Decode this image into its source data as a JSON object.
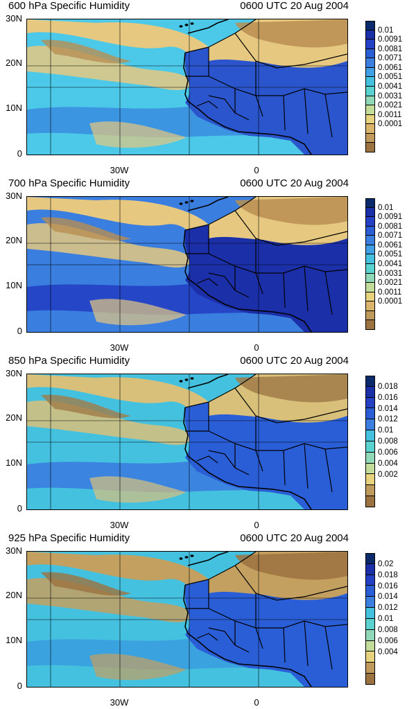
{
  "panels": [
    {
      "title": "600 hPa Specific Humidity",
      "time": "0600 UTC 20 Aug 2004",
      "y_labels": [
        "30N",
        "20N",
        "10N",
        "0"
      ],
      "x_labels": [
        "30W",
        "0"
      ],
      "colorbar_labels": [
        "0.01",
        "0.0091",
        "0.0081",
        "0.0071",
        "0.0061",
        "0.0051",
        "0.0041",
        "0.0031",
        "0.0021",
        "0.0011",
        "0.0001"
      ],
      "colorbar_colors": [
        "#0a2a6b",
        "#1a2fa8",
        "#2440c4",
        "#2a5ed6",
        "#3a7ee0",
        "#3fa0e6",
        "#45c1e0",
        "#5ad3d0",
        "#8fd9b8",
        "#c4dc9a",
        "#e7d27e",
        "#d9b46a",
        "#c09a5c",
        "#9c7240"
      ],
      "palette": {
        "ocean_low": "#4cc9e8",
        "ocean_mid": "#3b8fe0",
        "dry": "#e6c880",
        "very_dry": "#b88e52",
        "land_wet": "#2a55cc"
      }
    },
    {
      "title": "700 hPa Specific Humidity",
      "time": "0600 UTC 20 Aug 2004",
      "y_labels": [
        "30N",
        "20N",
        "10N",
        "0"
      ],
      "x_labels": [
        "30W",
        "0"
      ],
      "colorbar_labels": [
        "0.01",
        "0.0091",
        "0.0081",
        "0.0071",
        "0.0061",
        "0.0051",
        "0.0041",
        "0.0031",
        "0.0021",
        "0.0011",
        "0.0001"
      ],
      "colorbar_colors": [
        "#0a2a6b",
        "#1a2fa8",
        "#2440c4",
        "#2a5ed6",
        "#3a7ee0",
        "#3fa0e6",
        "#45c1e0",
        "#5ad3d0",
        "#8fd9b8",
        "#c4dc9a",
        "#e7d27e",
        "#d9b46a",
        "#c09a5c",
        "#9c7240"
      ],
      "palette": {
        "ocean_low": "#3a7ee0",
        "ocean_mid": "#2440c4",
        "dry": "#e6c880",
        "very_dry": "#b88e52",
        "land_wet": "#1a2fa8"
      }
    },
    {
      "title": "850 hPa Specific Humidity",
      "time": "0600 UTC 20 Aug 2004",
      "y_labels": [
        "30N",
        "20N",
        "10N",
        "0"
      ],
      "x_labels": [
        "30W",
        "0"
      ],
      "colorbar_labels": [
        "0.018",
        "0.016",
        "0.014",
        "0.012",
        "0.01",
        "0.008",
        "0.006",
        "0.004",
        "0.002"
      ],
      "colorbar_colors": [
        "#0a2a6b",
        "#1a2fa8",
        "#2440c4",
        "#2a5ed6",
        "#3a7ee0",
        "#45c1e0",
        "#5ad3d0",
        "#8fd9b8",
        "#c4dc9a",
        "#e7d27e",
        "#c09a5c",
        "#9c7240"
      ],
      "palette": {
        "ocean_low": "#45c1e0",
        "ocean_mid": "#3a7ee0",
        "dry": "#d9c07a",
        "very_dry": "#a07a48",
        "land_wet": "#2a5ed6"
      }
    },
    {
      "title": "925 hPa Specific Humidity",
      "time": "0600 UTC 20 Aug 2004",
      "y_labels": [
        "30N",
        "20N",
        "10N",
        "0"
      ],
      "x_labels": [
        "30W",
        "0"
      ],
      "colorbar_labels": [
        "0.02",
        "0.018",
        "0.016",
        "0.014",
        "0.012",
        "0.01",
        "0.008",
        "0.006",
        "0.004"
      ],
      "colorbar_colors": [
        "#0a2a6b",
        "#1a2fa8",
        "#2440c4",
        "#2a5ed6",
        "#3a7ee0",
        "#45c1e0",
        "#5ad3d0",
        "#8fd9b8",
        "#c4dc9a",
        "#e7d27e",
        "#c09a5c",
        "#9c7240"
      ],
      "palette": {
        "ocean_low": "#45c1e0",
        "ocean_mid": "#3a9ee0",
        "dry": "#c4a060",
        "very_dry": "#9c7240",
        "land_wet": "#2a5ed6"
      }
    }
  ]
}
